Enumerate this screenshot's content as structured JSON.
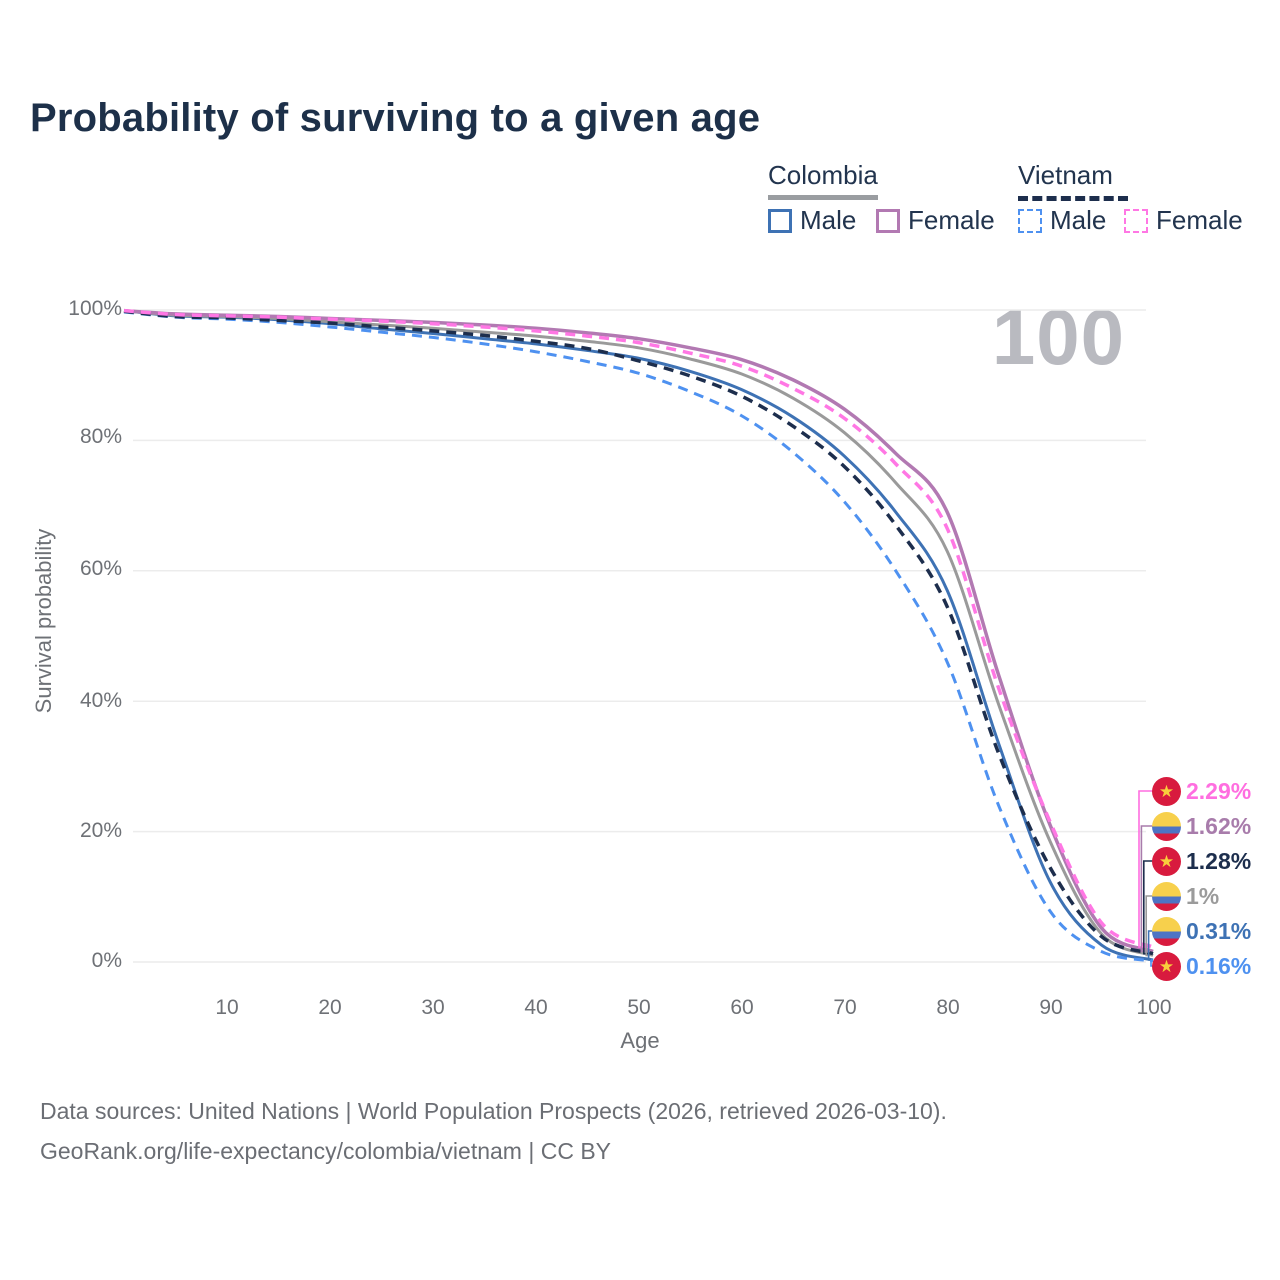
{
  "title": "Probability of surviving to a given age",
  "watermark": "100",
  "legend": {
    "groups": [
      {
        "label": "Colombia",
        "underline_style": "solid",
        "underline_color": "#9a9da1",
        "items": [
          {
            "label": "Male",
            "series": "Colombia Male"
          },
          {
            "label": "Female",
            "series": "Colombia Female"
          }
        ]
      },
      {
        "label": "Vietnam",
        "underline_style": "dashed",
        "underline_color": "#1d2e4d",
        "items": [
          {
            "label": "Male",
            "series": "Vietnam Male"
          },
          {
            "label": "Female",
            "series": "Vietnam Female"
          }
        ]
      }
    ]
  },
  "chart_data": {
    "type": "line",
    "title": "Probability of surviving to a given age",
    "xlabel": "Age",
    "ylabel": "Survival probability",
    "xlim": [
      0,
      100
    ],
    "ylim": [
      0,
      100
    ],
    "grid": "horizontal",
    "x_ticks": [
      10,
      20,
      30,
      40,
      50,
      60,
      70,
      80,
      90,
      100
    ],
    "x_tick_labels": [
      "10",
      "20",
      "30",
      "40",
      "50",
      "60",
      "70",
      "80",
      "90",
      "100"
    ],
    "y_ticks": [
      100,
      80,
      60,
      40,
      20,
      0
    ],
    "y_tick_labels": [
      "100%",
      "80%",
      "60%",
      "40%",
      "20%",
      "0%"
    ],
    "hovered_age": "100",
    "x": [
      0,
      5,
      10,
      15,
      20,
      25,
      30,
      35,
      40,
      45,
      50,
      55,
      60,
      65,
      70,
      75,
      80,
      85,
      90,
      95,
      100
    ],
    "series": [
      {
        "name": "Colombia Male",
        "country": "Colombia",
        "sex": "male",
        "style": "solid",
        "color": "#3e72b4",
        "width": 3,
        "values": [
          99.9,
          99.1,
          98.9,
          98.5,
          97.9,
          97.1,
          96.4,
          95.6,
          94.8,
          93.8,
          92.6,
          90.6,
          87.8,
          83.6,
          77.6,
          69.0,
          57.0,
          33.5,
          12.3,
          2.6,
          0.31
        ]
      },
      {
        "name": "Colombia Both sexes",
        "country": "Colombia",
        "sex": "both",
        "style": "solid",
        "color": "#9a9a9a",
        "width": 3,
        "values": [
          99.9,
          99.2,
          99.0,
          98.7,
          98.2,
          97.7,
          97.2,
          96.6,
          96.0,
          95.2,
          94.2,
          92.5,
          90.2,
          86.5,
          81.2,
          73.5,
          63.0,
          39.5,
          18.5,
          4.3,
          1.0
        ]
      },
      {
        "name": "Colombia Female",
        "country": "Colombia",
        "sex": "female",
        "style": "solid",
        "color": "#b279b2",
        "width": 3.5,
        "values": [
          99.9,
          99.4,
          99.2,
          99.0,
          98.7,
          98.4,
          98.1,
          97.7,
          97.2,
          96.5,
          95.6,
          94.2,
          92.4,
          89.3,
          84.8,
          78.0,
          69.0,
          44.0,
          21.0,
          5.2,
          1.62
        ]
      },
      {
        "name": "Vietnam Male",
        "country": "Vietnam",
        "sex": "male",
        "style": "dashed",
        "color": "#4e91f0",
        "width": 3,
        "values": [
          99.7,
          98.9,
          98.6,
          98.1,
          97.4,
          96.6,
          95.8,
          94.8,
          93.6,
          92.1,
          90.3,
          87.5,
          83.8,
          78.2,
          70.6,
          60.0,
          46.0,
          24.0,
          7.8,
          1.6,
          0.16
        ]
      },
      {
        "name": "Vietnam Both sexes",
        "country": "Vietnam",
        "sex": "both",
        "style": "dashed",
        "color": "#1d2e4d",
        "width": 3.5,
        "values": [
          99.8,
          99.0,
          98.8,
          98.4,
          98.0,
          97.4,
          96.8,
          96.1,
          95.2,
          94.1,
          92.2,
          89.9,
          86.8,
          82.2,
          76.0,
          67.0,
          54.5,
          32.0,
          14.5,
          3.9,
          1.28
        ]
      },
      {
        "name": "Vietnam Female",
        "country": "Vietnam",
        "sex": "female",
        "style": "dashed",
        "color": "#ff77e4",
        "width": 3.5,
        "values": [
          99.9,
          99.3,
          99.1,
          98.9,
          98.6,
          98.3,
          97.9,
          97.4,
          96.8,
          96.0,
          95.0,
          93.4,
          91.4,
          88.0,
          83.4,
          76.4,
          66.5,
          42.0,
          21.5,
          6.0,
          2.29
        ]
      }
    ],
    "end_labels": [
      {
        "text": "2.29%",
        "series": "Vietnam Female",
        "flag": "vietnam",
        "color": "#ff6ee0"
      },
      {
        "text": "1.62%",
        "series": "Colombia Female",
        "flag": "colombia",
        "color": "#a87cab"
      },
      {
        "text": "1.28%",
        "series": "Vietnam Both sexes",
        "flag": "vietnam",
        "color": "#1d2e4d"
      },
      {
        "text": "1%",
        "series": "Colombia Both sexes",
        "flag": "colombia",
        "color": "#9b9b9b"
      },
      {
        "text": "0.31%",
        "series": "Colombia Male",
        "flag": "colombia",
        "color": "#3e72b4"
      },
      {
        "text": "0.16%",
        "series": "Vietnam Male",
        "flag": "vietnam",
        "color": "#4e91f0"
      }
    ]
  },
  "footer": {
    "line1": "Data sources: United Nations | World Population Prospects (2026, retrieved 2026-03-10).",
    "line2": "GeoRank.org/life-expectancy/colombia/vietnam | CC BY"
  }
}
